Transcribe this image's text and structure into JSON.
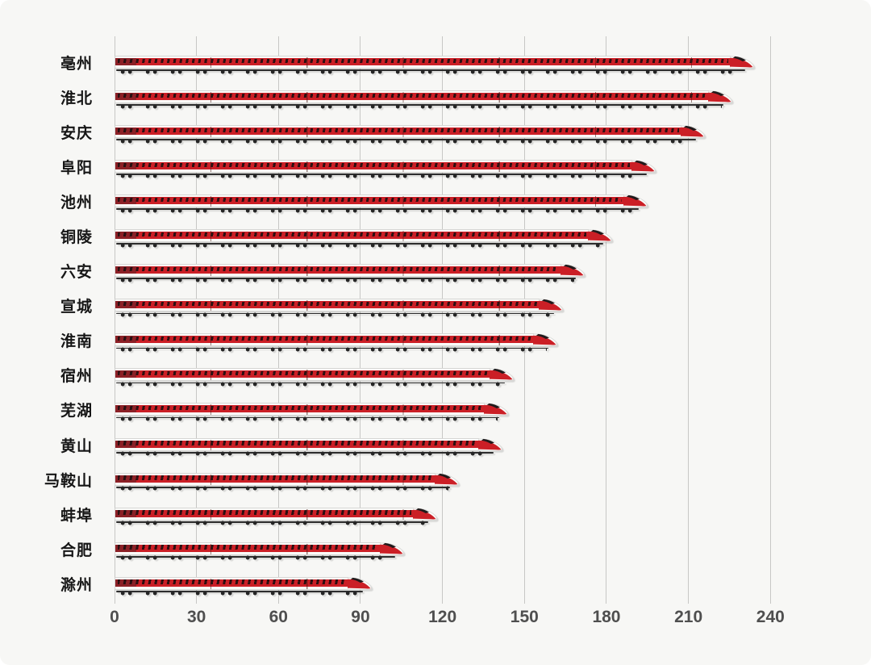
{
  "chart_data": {
    "type": "bar",
    "orientation": "horizontal",
    "title": "",
    "xlabel": "",
    "ylabel": "",
    "categories": [
      "亳州",
      "淮北",
      "安庆",
      "阜阳",
      "池州",
      "铜陵",
      "六安",
      "宣城",
      "淮南",
      "宿州",
      "芜湖",
      "黄山",
      "马鞍山",
      "蚌埠",
      "合肥",
      "滁州"
    ],
    "values": [
      234,
      226,
      216,
      198,
      195,
      182,
      172,
      164,
      162,
      146,
      144,
      142,
      126,
      118,
      106,
      94
    ],
    "x_ticks": [
      "0",
      "30",
      "60",
      "90",
      "120",
      "150",
      "180",
      "210",
      "240"
    ],
    "xlim": [
      0,
      240
    ],
    "grid": "vertical-only",
    "legend": "none",
    "bar_style": "high-speed-train-pictogram",
    "colors": {
      "train_red": "#cb1f26",
      "train_tail_dark_red": "#8c2026",
      "window_dark": "#230e10",
      "chassis_dark": "#2d2d2d",
      "train_white": "#fbfbf9",
      "grid_line": "#c7c7c5",
      "background": "#f7f7f5",
      "tick_label": "#4f4f4f",
      "category_label": "#161616"
    }
  }
}
